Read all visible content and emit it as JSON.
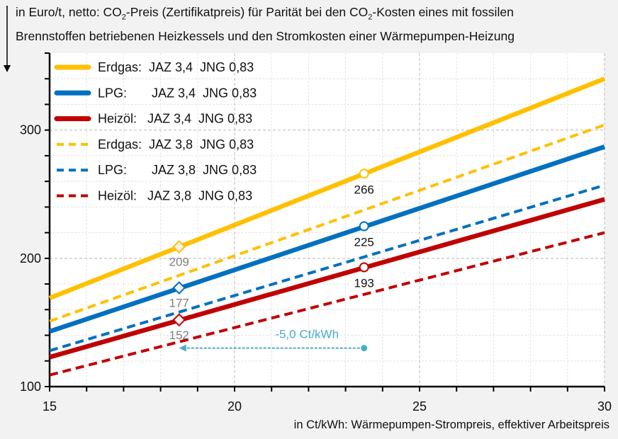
{
  "chart_data": {
    "type": "line",
    "ylabel_parts": [
      "in Euro/t, netto: CO",
      "2",
      "-Preis (Zertifikatpreis) für Parität bei den CO",
      "2",
      "-Kosten eines mit fossilen",
      "Brennstoffen betriebenen Heizkessels und den Stromkosten einer Wärmepumpen-Heizung"
    ],
    "xlabel": "in Ct/kWh: Wärmepumpen-Strompreis, effektiver Arbeitspreis",
    "xlim": [
      15,
      30
    ],
    "ylim": [
      100,
      360
    ],
    "xticks": [
      "15",
      "20",
      "25",
      "30"
    ],
    "yticks": [
      "100",
      "200",
      "300"
    ],
    "grid": true,
    "legend_position": "top-left",
    "series": [
      {
        "name": "Erdgas:  JAZ 3,4  JNG 0,83",
        "color": "#ffc000",
        "dash": false,
        "x": [
          15,
          30
        ],
        "y": [
          169,
          340
        ]
      },
      {
        "name": "LPG:       JAZ 3,4  JNG 0,83",
        "color": "#0070c0",
        "dash": false,
        "x": [
          15,
          30
        ],
        "y": [
          143,
          287
        ]
      },
      {
        "name": "Heizöl:   JAZ 3,4  JNG 0,83",
        "color": "#c00000",
        "dash": false,
        "x": [
          15,
          30
        ],
        "y": [
          123,
          246
        ]
      },
      {
        "name": "Erdgas:  JAZ 3,8  JNG 0,83",
        "color": "#ffc000",
        "dash": true,
        "x": [
          15,
          30
        ],
        "y": [
          151,
          304
        ]
      },
      {
        "name": "LPG:       JAZ 3,8  JNG 0,83",
        "color": "#0070c0",
        "dash": true,
        "x": [
          15,
          30
        ],
        "y": [
          128,
          257
        ]
      },
      {
        "name": "Heizöl:   JAZ 3,8  JNG 0,83",
        "color": "#c00000",
        "dash": true,
        "x": [
          15,
          30
        ],
        "y": [
          109,
          220
        ]
      }
    ],
    "points": [
      {
        "series": 0,
        "x": 18.5,
        "y": 209,
        "label": "209",
        "marker": "diamond"
      },
      {
        "series": 1,
        "x": 18.5,
        "y": 177,
        "label": "177",
        "marker": "diamond"
      },
      {
        "series": 2,
        "x": 18.5,
        "y": 152,
        "label": "152",
        "marker": "diamond"
      },
      {
        "series": 0,
        "x": 23.5,
        "y": 266,
        "label": "266",
        "marker": "circle"
      },
      {
        "series": 1,
        "x": 23.5,
        "y": 225,
        "label": "225",
        "marker": "circle"
      },
      {
        "series": 2,
        "x": 23.5,
        "y": 193,
        "label": "193",
        "marker": "circle"
      }
    ],
    "annotation": {
      "text": "-5,0 Ct/kWh",
      "from_x": 23.5,
      "to_x": 18.5,
      "y": 130,
      "color": "#4bacc6"
    }
  }
}
